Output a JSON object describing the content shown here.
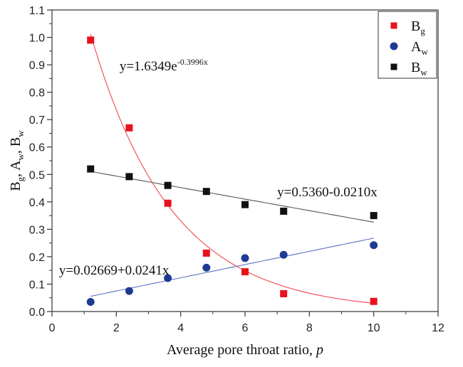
{
  "chart_data": {
    "type": "scatter",
    "title": "",
    "xlabel": "Average pore throat ratio, ",
    "xlabel_italic": "p",
    "ylabel_parts": [
      "B",
      "g",
      ", A",
      "w",
      ", B",
      "w"
    ],
    "xlim": [
      0,
      12
    ],
    "ylim": [
      0,
      1.1
    ],
    "x_ticks": [
      0,
      2,
      4,
      6,
      8,
      10,
      12
    ],
    "x_tick_labels": [
      "0",
      "2",
      "4",
      "6",
      "8",
      "10",
      "12"
    ],
    "y_ticks": [
      0.0,
      0.1,
      0.2,
      0.3,
      0.4,
      0.5,
      0.6,
      0.7,
      0.8,
      0.9,
      1.0,
      1.1
    ],
    "y_tick_labels": [
      "0.0",
      "0.1",
      "0.2",
      "0.3",
      "0.4",
      "0.5",
      "0.6",
      "0.7",
      "0.8",
      "0.9",
      "1.0",
      "1.1"
    ],
    "grid": false,
    "legend_position": "top-right",
    "x": [
      1.2,
      2.4,
      3.6,
      4.8,
      6.0,
      7.2,
      10.0
    ],
    "series": [
      {
        "name": "Bg",
        "label_main": "B",
        "label_sub": "g",
        "marker": "square",
        "color": "#e8121c",
        "values": [
          0.99,
          0.67,
          0.395,
          0.213,
          0.145,
          0.065,
          0.037
        ],
        "fit": {
          "kind": "exp",
          "a": 1.6349,
          "b": -0.3996,
          "x_range": [
            1.2,
            10.0
          ]
        }
      },
      {
        "name": "Aw",
        "label_main": "A",
        "label_sub": "w",
        "marker": "circle",
        "color": "#1f3a93",
        "values": [
          0.035,
          0.075,
          0.122,
          0.16,
          0.195,
          0.207,
          0.242
        ],
        "fit": {
          "kind": "linear",
          "a": 0.02669,
          "b": 0.0241,
          "x_range": [
            1.2,
            10.0
          ]
        }
      },
      {
        "name": "Bw",
        "label_main": "B",
        "label_sub": "w",
        "marker": "square",
        "color": "#111111",
        "values": [
          0.52,
          0.492,
          0.46,
          0.438,
          0.39,
          0.366,
          0.35
        ],
        "fit": {
          "kind": "linear",
          "a": 0.536,
          "b": -0.021,
          "x_range": [
            1.2,
            10.0
          ]
        }
      }
    ],
    "annotations": [
      {
        "name": "bg-fit-equation",
        "text": "y=1.6349e",
        "sup": "-0.3996x",
        "color": "#111111",
        "x": 2.1,
        "y": 0.88
      },
      {
        "name": "bw-fit-equation",
        "text": "y=0.5360-0.0210x",
        "sup": "",
        "color": "#111111",
        "x": 7.0,
        "y": 0.42
      },
      {
        "name": "aw-fit-equation",
        "text": "y=0.02669+0.0241x",
        "sup": "",
        "color": "#111111",
        "x": 0.22,
        "y": 0.135
      }
    ]
  }
}
